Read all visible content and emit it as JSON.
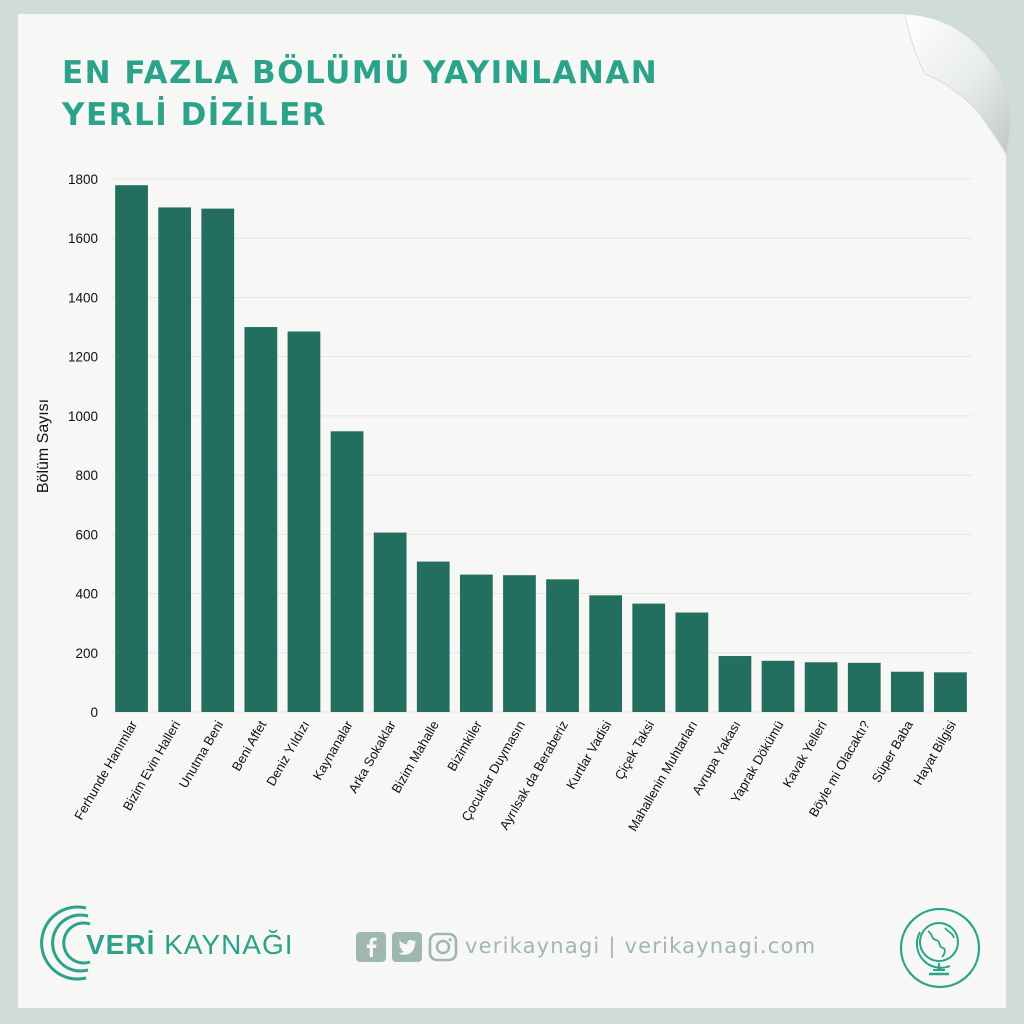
{
  "title": {
    "line1": "EN FAZLA BÖLÜMÜ YAYINLANAN",
    "line2": "YERLİ DİZİLER"
  },
  "chart_data": {
    "type": "bar",
    "title": "EN FAZLA BÖLÜMÜ YAYINLANAN YERLİ DİZİLER",
    "xlabel": "",
    "ylabel": "Bölüm Sayısı",
    "ylim": [
      0,
      1800
    ],
    "yticks": [
      0,
      200,
      400,
      600,
      800,
      1000,
      1200,
      1400,
      1600,
      1800
    ],
    "grid": true,
    "color": "#246e5f",
    "categories": [
      "Ferhunde Hanımlar",
      "Bizim Evin Halleri",
      "Unutma Beni",
      "Beni Affet",
      "Deniz Yıldızı",
      "Kaynanalar",
      "Arka Sokaklar",
      "Bizim Mahalle",
      "Bizimkiler",
      "Çocuklar Duymasın",
      "Ayrılsak da Beraberiz",
      "Kurtlar Vadisi",
      "Çiçek Taksi",
      "Mahallenin Muhtarları",
      "Avrupa Yakası",
      "Yaprak Dökümü",
      "Kavak Yelleri",
      "Böyle mi Olacaktı?",
      "Süper Baba",
      "Hayat Bilgisi"
    ],
    "values": [
      1779,
      1704,
      1700,
      1300,
      1285,
      948,
      606,
      508,
      464,
      462,
      448,
      394,
      366,
      336,
      189,
      173,
      168,
      166,
      136,
      134
    ]
  },
  "footer": {
    "brand_bold": "VERİ",
    "brand_light": " KAYNAĞI",
    "social_text": "verikaynagi | verikaynagi.com",
    "facebook_icon": "facebook-icon",
    "twitter_icon": "twitter-icon",
    "instagram_icon": "instagram-icon",
    "globe_icon": "globe-icon",
    "accent": "#2aa38a",
    "social_color": "#9fb7b2"
  }
}
